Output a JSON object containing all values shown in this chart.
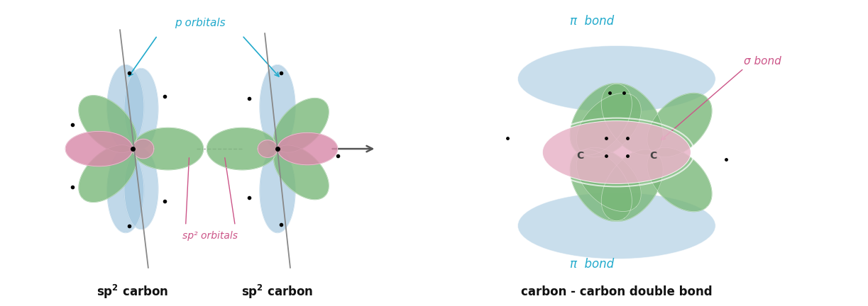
{
  "fig_width": 12.23,
  "fig_height": 4.32,
  "dpi": 100,
  "bg_color": "#ffffff",
  "color_blue": "#9ec4de",
  "color_green": "#7ab87a",
  "color_pink": "#d98aaa",
  "color_pink_light": "#e8b4c8",
  "color_cyan": "#22aacc",
  "color_pink_label": "#cc5588",
  "color_dark": "#111111",
  "color_gray": "#666666",
  "label_p_orbitals": "p orbitals",
  "label_sp2_orbitals": "sp² orbitals",
  "label_pi_top": "π  bond",
  "label_pi_bottom": "π  bond",
  "label_sigma": "σ bond",
  "label_lc": "sp² carbon",
  "label_rc": "sp² carbon",
  "label_double": "carbon - carbon double bond"
}
